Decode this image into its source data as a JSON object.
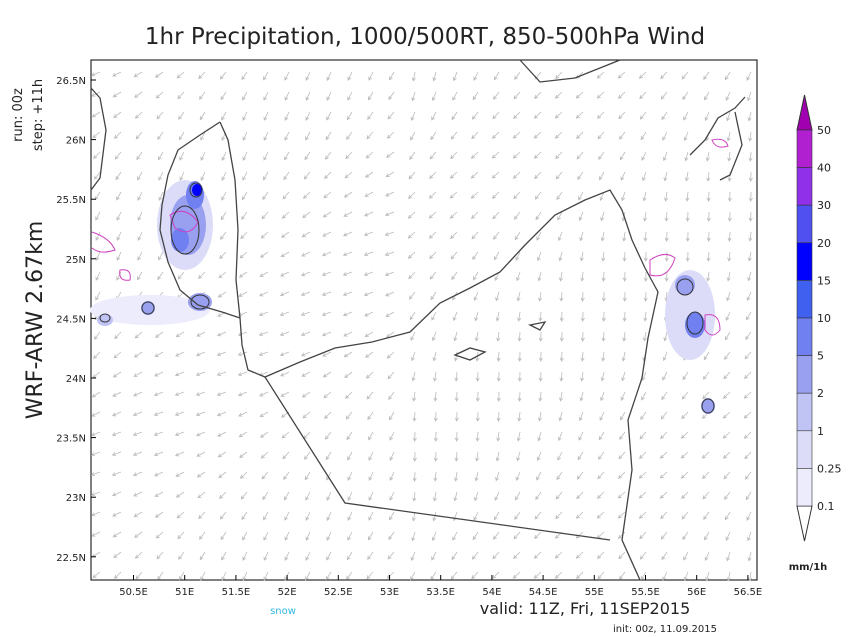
{
  "title": "1hr Precipitation, 1000/500RT, 850-500hPa Wind",
  "run": "run: 00z",
  "step": "step: +11h",
  "model": "WRF-ARW 2.67km",
  "lat_labels": [
    "26.5N",
    "26N",
    "25.5N",
    "25N",
    "24.5N",
    "24N",
    "23.5N",
    "23N",
    "22.5N"
  ],
  "lon_labels": [
    "50.5E",
    "51E",
    "51.5E",
    "52E",
    "52.5E",
    "53E",
    "53.5E",
    "54E",
    "54.5E",
    "55E",
    "55.5E",
    "56E",
    "56.5E"
  ],
  "colorbar": {
    "labels": [
      "50",
      "40",
      "30",
      "20",
      "15",
      "10",
      "5",
      "2",
      "1",
      "0.25",
      "0.1"
    ],
    "unit": "mm/1h"
  },
  "legend_snow": "snow",
  "valid": "valid: 11Z, Fri, 11SEP2015",
  "init": "init: 00z, 11.09.2015"
}
